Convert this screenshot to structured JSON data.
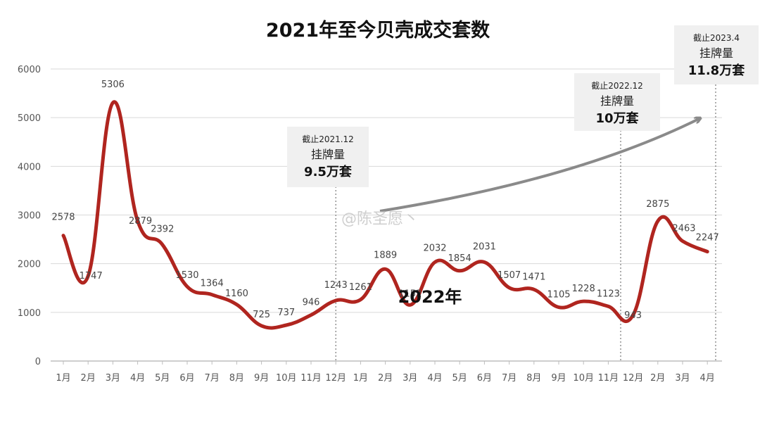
{
  "chart_data": {
    "type": "line",
    "title": "2021年至今贝壳成交套数",
    "xlabel": "",
    "ylabel": "",
    "ylim": [
      0,
      6000
    ],
    "yticks": [
      "0",
      "1000",
      "2000",
      "3000",
      "4000",
      "5000",
      "6000"
    ],
    "grid": true,
    "categories": [
      "1月",
      "2月",
      "3月",
      "4月",
      "5月",
      "6月",
      "7月",
      "8月",
      "9月",
      "10月",
      "11月",
      "12月",
      "1月",
      "2月",
      "3月",
      "4月",
      "5月",
      "6月",
      "7月",
      "8月",
      "9月",
      "10月",
      "11月",
      "12月",
      "2月",
      "3月",
      "4月"
    ],
    "values": [
      2578,
      1747,
      5306,
      2879,
      2392,
      1530,
      1364,
      1160,
      725,
      737,
      946,
      1243,
      1261,
      1889,
      1152,
      2032,
      1854,
      2031,
      1507,
      1471,
      1105,
      1228,
      1123,
      943,
      2875,
      2463,
      2247
    ],
    "data_labels": [
      "2578",
      "1747",
      "5306",
      "2879",
      "2392",
      "1530",
      "1364",
      "1160",
      "725",
      "737",
      "946",
      "1243",
      "1261",
      "1889",
      "1152",
      "2032",
      "1854",
      "2031",
      "1507",
      "1471",
      "1105",
      "1228",
      "1123",
      "943",
      "2875",
      "2463",
      "2247"
    ],
    "line_color": "#b0251f",
    "year_label": "2022年",
    "annotations": [
      {
        "line1": "截止2021.12",
        "line2": "挂牌量",
        "line3": "9.5万套"
      },
      {
        "line1": "截止2022.12",
        "line2": "挂牌量",
        "line3": "10万套"
      },
      {
        "line1": "截止2023.4",
        "line2": "挂牌量",
        "line3": "11.8万套"
      }
    ]
  },
  "watermark": "@陈圣愿丶"
}
